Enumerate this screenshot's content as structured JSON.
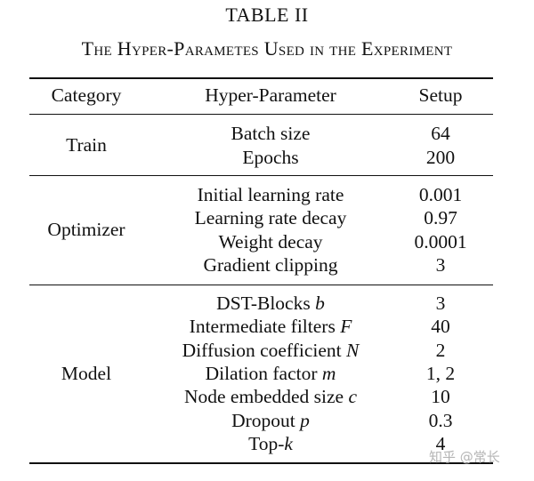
{
  "table": {
    "number": "TABLE II",
    "caption": "The Hyper-Parametes Used in the Experiment",
    "headers": {
      "category": "Category",
      "parameter": "Hyper-Parameter",
      "setup": "Setup"
    },
    "groups": [
      {
        "category": "Train",
        "rows": [
          {
            "param": "Batch size",
            "setup": "64"
          },
          {
            "param": "Epochs",
            "setup": "200"
          }
        ]
      },
      {
        "category": "Optimizer",
        "rows": [
          {
            "param": "Initial learning rate",
            "setup": "0.001"
          },
          {
            "param": "Learning rate decay",
            "setup": "0.97"
          },
          {
            "param": "Weight decay",
            "setup": "0.0001"
          },
          {
            "param": "Gradient clipping",
            "setup": "3"
          }
        ]
      },
      {
        "category": "Model",
        "rows": [
          {
            "param": "DST-Blocks ",
            "symbol": "b",
            "setup": "3"
          },
          {
            "param": "Intermediate filters ",
            "symbol": "F",
            "setup": "40"
          },
          {
            "param": "Diffusion coefficient ",
            "symbol": "N",
            "setup": "2"
          },
          {
            "param": "Dilation factor ",
            "symbol": "m",
            "setup": "1, 2"
          },
          {
            "param": "Node embedded size ",
            "symbol": "c",
            "setup": "10"
          },
          {
            "param": "Dropout ",
            "symbol": "p",
            "setup": "0.3"
          },
          {
            "param": "Top-",
            "symbol": "k",
            "setup": "4"
          }
        ]
      }
    ]
  },
  "watermark": "知乎 @常长"
}
